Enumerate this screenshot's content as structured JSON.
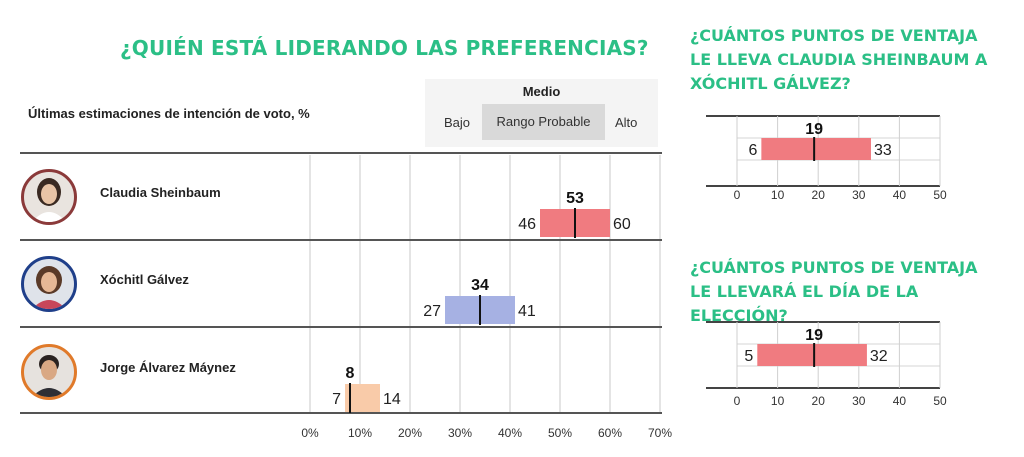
{
  "main_title": "¿QUIÉN ESTÁ LIDERANDO LAS PREFERENCIAS?",
  "subtitle": "Últimas estimaciones de intención de voto, %",
  "legend": {
    "medio": "Medio",
    "bajo": "Bajo",
    "rango": "Rango Probable",
    "alto": "Alto"
  },
  "side_title_1": "¿CUÁNTOS PUNTOS DE VENTAJA LE LLEVA CLAUDIA SHEINBAUM A XÓCHITL GÁLVEZ?",
  "side_title_2": "¿CUÁNTOS PUNTOS DE VENTAJA LE LLEVARÁ EL DÍA DE LA ELECCIÓN?",
  "colors": {
    "accent": "#2bbf86",
    "red_bar": "#f07b80",
    "blue_bar": "#a6b1e3",
    "orange_bar": "#f9cba9"
  },
  "chart_data": [
    {
      "type": "bar",
      "subtype": "range",
      "title": "¿QUIÉN ESTÁ LIDERANDO LAS PREFERENCIAS?",
      "subtitle": "Últimas estimaciones de intención de voto, %",
      "xlim": [
        0,
        70
      ],
      "ticks": [
        "0%",
        "10%",
        "20%",
        "30%",
        "40%",
        "50%",
        "60%",
        "70%"
      ],
      "grid": true,
      "categories": [
        "Claudia Sheinbaum",
        "Xóchitl Gálvez",
        "Jorge Álvarez Máynez"
      ],
      "series": [
        {
          "name": "Claudia Sheinbaum",
          "low": 46,
          "median": 53,
          "high": 60,
          "color": "#f07b80"
        },
        {
          "name": "Xóchitl Gálvez",
          "low": 27,
          "median": 34,
          "high": 41,
          "color": "#a6b1e3"
        },
        {
          "name": "Jorge Álvarez Máynez",
          "low": 7,
          "median": 8,
          "high": 14,
          "color": "#f9cba9"
        }
      ]
    },
    {
      "type": "bar",
      "subtype": "range",
      "title": "¿CUÁNTOS PUNTOS DE VENTAJA LE LLEVA CLAUDIA SHEINBAUM A XÓCHITL GÁLVEZ?",
      "xlim": [
        0,
        50
      ],
      "ticks": [
        "0",
        "10",
        "20",
        "30",
        "40",
        "50"
      ],
      "grid": true,
      "series": [
        {
          "low": 6,
          "median": 19,
          "high": 33,
          "color": "#f07b80"
        }
      ]
    },
    {
      "type": "bar",
      "subtype": "range",
      "title": "¿CUÁNTOS PUNTOS DE VENTAJA LE LLEVARÁ EL DÍA DE LA ELECCIÓN?",
      "xlim": [
        0,
        50
      ],
      "ticks": [
        "0",
        "10",
        "20",
        "30",
        "40",
        "50"
      ],
      "grid": true,
      "series": [
        {
          "low": 5,
          "median": 19,
          "high": 32,
          "color": "#f07b80"
        }
      ]
    }
  ]
}
